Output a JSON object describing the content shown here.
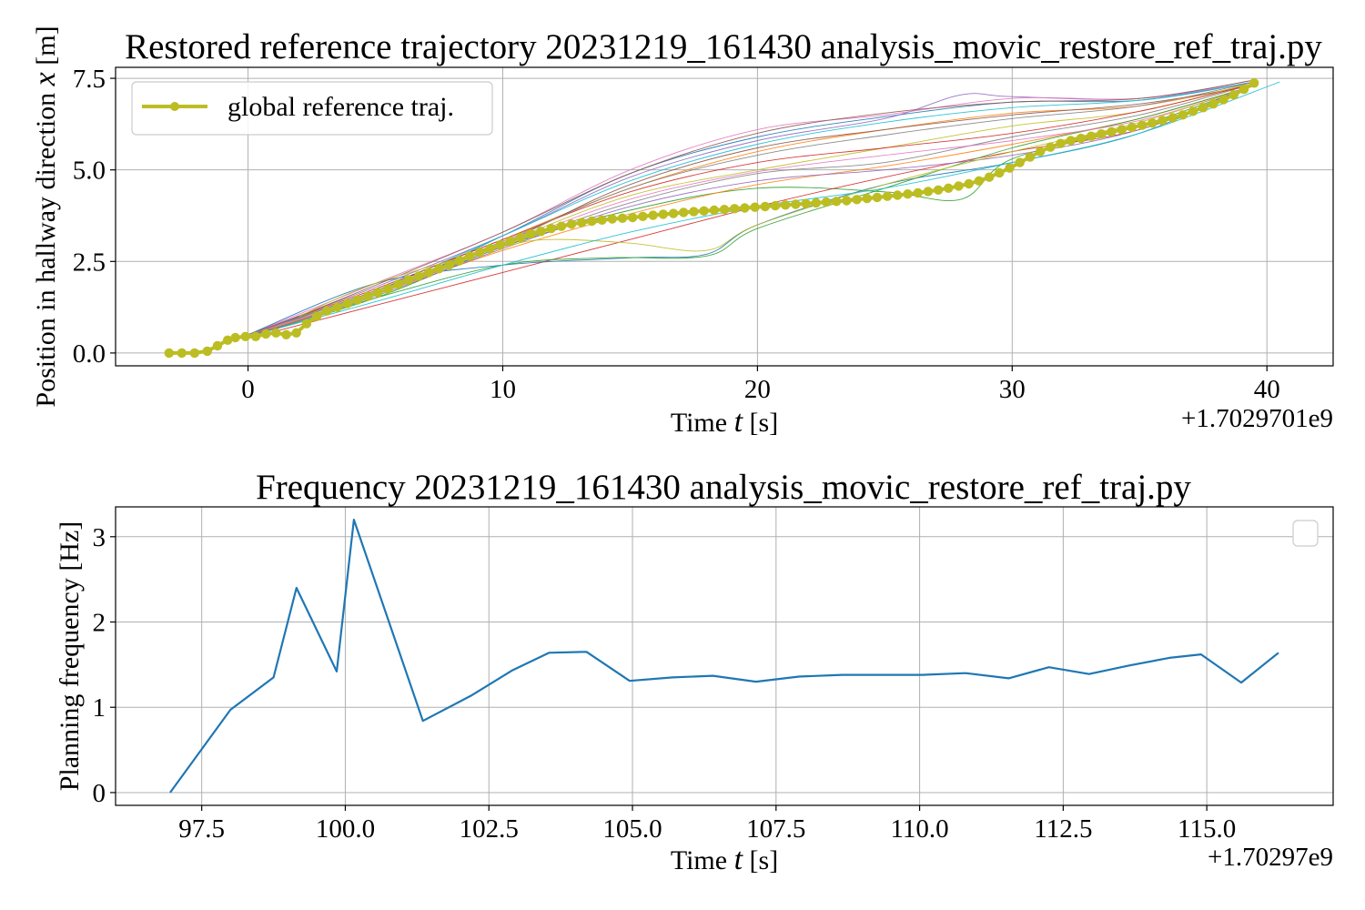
{
  "chart_data": [
    {
      "type": "line",
      "title": "Restored reference trajectory 20231219_161430 analysis_movic_restore_ref_traj.py",
      "xlabel_main": "Time ",
      "xlabel_var": "t",
      "xlabel_unit": " [s]",
      "ylabel_main": "Position in hallway direction ",
      "ylabel_var": "x",
      "ylabel_unit": " [m]",
      "offset_label": "+1.7029701e9",
      "xlim": [
        -5.2,
        42.6
      ],
      "ylim": [
        -0.35,
        7.8
      ],
      "xticks": [
        0,
        10,
        20,
        30,
        40
      ],
      "xtick_labels": [
        "0",
        "10",
        "20",
        "30",
        "40"
      ],
      "yticks": [
        0,
        2.5,
        5,
        7.5
      ],
      "ytick_labels": [
        "0.0",
        "2.5",
        "5.0",
        "7.5"
      ],
      "grid": true,
      "legend": {
        "placement": "top-left",
        "entries": [
          "global reference traj."
        ]
      },
      "colors": {
        "main": "#bcbd22",
        "palette": [
          "#1f77b4",
          "#ff7f0e",
          "#2ca02c",
          "#d62728",
          "#9467bd",
          "#8c564b",
          "#e377c2",
          "#7f7f7f",
          "#bcbd22",
          "#17becf"
        ]
      },
      "series": [
        {
          "name": "global reference traj.",
          "x": [
            -3.1,
            -2.6,
            -2.1,
            -1.6,
            -1.2,
            -0.8,
            -0.5,
            -0.1,
            0.3,
            0.7,
            1.1,
            1.5,
            1.9,
            2.3,
            2.7,
            3.1,
            3.5,
            3.9,
            4.3,
            4.7,
            5.1,
            5.5,
            5.9,
            6.3,
            6.7,
            7.1,
            7.5,
            7.9,
            8.3,
            8.7,
            9.1,
            9.5,
            9.9,
            10.3,
            10.7,
            11.1,
            11.5,
            11.9,
            12.3,
            12.7,
            13.1,
            13.5,
            13.9,
            14.3,
            14.7,
            15.1,
            15.5,
            15.9,
            16.3,
            16.7,
            17.1,
            17.5,
            17.9,
            18.3,
            18.7,
            19.1,
            19.5,
            19.9,
            20.3,
            20.7,
            21.1,
            21.5,
            21.9,
            22.3,
            22.7,
            23.1,
            23.5,
            23.9,
            24.3,
            24.7,
            25.1,
            25.5,
            25.9,
            26.3,
            26.7,
            27.1,
            27.5,
            27.9,
            28.3,
            28.7,
            29.1,
            29.5,
            29.9,
            30.3,
            30.7,
            31.1,
            31.5,
            31.9,
            32.3,
            32.7,
            33.1,
            33.5,
            33.9,
            34.3,
            34.7,
            35.1,
            35.5,
            35.9,
            36.3,
            36.7,
            37.1,
            37.5,
            37.9,
            38.3,
            38.7,
            39.1,
            39.5
          ],
          "y": [
            0.0,
            0.0,
            0.0,
            0.05,
            0.2,
            0.35,
            0.42,
            0.45,
            0.45,
            0.52,
            0.55,
            0.5,
            0.55,
            0.8,
            1.0,
            1.15,
            1.25,
            1.35,
            1.45,
            1.55,
            1.65,
            1.75,
            1.88,
            2.0,
            2.1,
            2.2,
            2.3,
            2.4,
            2.52,
            2.65,
            2.75,
            2.85,
            2.95,
            3.05,
            3.15,
            3.25,
            3.32,
            3.4,
            3.46,
            3.52,
            3.56,
            3.6,
            3.63,
            3.66,
            3.68,
            3.7,
            3.73,
            3.76,
            3.79,
            3.81,
            3.84,
            3.86,
            3.88,
            3.9,
            3.92,
            3.94,
            3.96,
            3.98,
            4.0,
            4.02,
            4.04,
            4.06,
            4.08,
            4.1,
            4.12,
            4.14,
            4.16,
            4.19,
            4.22,
            4.25,
            4.28,
            4.31,
            4.34,
            4.37,
            4.41,
            4.45,
            4.5,
            4.56,
            4.62,
            4.7,
            4.8,
            4.92,
            5.05,
            5.2,
            5.35,
            5.5,
            5.62,
            5.72,
            5.8,
            5.86,
            5.92,
            5.98,
            6.04,
            6.1,
            6.16,
            6.22,
            6.28,
            6.35,
            6.42,
            6.5,
            6.6,
            6.7,
            6.8,
            6.92,
            7.05,
            7.2,
            7.37
          ]
        }
      ],
      "thin_series": [
        {
          "x": [
            0,
            5,
            10,
            15,
            20,
            25,
            30,
            35,
            39.5
          ],
          "y": [
            0.45,
            1.6,
            3.2,
            4.9,
            5.9,
            6.45,
            6.85,
            6.9,
            7.4
          ]
        },
        {
          "x": [
            0,
            5,
            10,
            15,
            20,
            25,
            30,
            35,
            39.5
          ],
          "y": [
            0.5,
            1.75,
            3.1,
            4.5,
            5.5,
            6.1,
            6.55,
            6.75,
            7.35
          ]
        },
        {
          "x": [
            0,
            5,
            10,
            15,
            20,
            25,
            28,
            30,
            35,
            39.5
          ],
          "y": [
            0.45,
            1.5,
            2.9,
            3.9,
            4.5,
            4.4,
            4.2,
            5.3,
            6.2,
            7.3
          ]
        },
        {
          "x": [
            0,
            5,
            10,
            15,
            20,
            25,
            30,
            35,
            39.5
          ],
          "y": [
            0.4,
            1.3,
            2.2,
            3.1,
            4.0,
            4.8,
            5.5,
            6.1,
            7.3
          ]
        },
        {
          "x": [
            0,
            5,
            10,
            15,
            20,
            25,
            28,
            30,
            35,
            39.5
          ],
          "y": [
            0.5,
            1.8,
            3.2,
            4.8,
            5.8,
            6.4,
            7.05,
            7.0,
            6.95,
            7.45
          ]
        },
        {
          "x": [
            0,
            5,
            10,
            15,
            20,
            25,
            30,
            35,
            39.5
          ],
          "y": [
            0.45,
            1.7,
            3.0,
            4.6,
            5.6,
            6.1,
            6.5,
            6.8,
            7.3
          ]
        },
        {
          "x": [
            0,
            5,
            10,
            15,
            20,
            25,
            30,
            35,
            39.5
          ],
          "y": [
            0.5,
            1.9,
            3.3,
            5.0,
            6.1,
            6.5,
            6.95,
            6.95,
            7.4
          ]
        },
        {
          "x": [
            0,
            5,
            10,
            15,
            20,
            25,
            30,
            35,
            39.5
          ],
          "y": [
            0.45,
            1.6,
            2.9,
            4.1,
            4.9,
            5.2,
            5.9,
            6.5,
            7.35
          ]
        },
        {
          "x": [
            0,
            5,
            10,
            15,
            20,
            25,
            30,
            35,
            39.5
          ],
          "y": [
            0.45,
            1.65,
            3.0,
            4.3,
            5.0,
            5.6,
            6.2,
            6.6,
            7.4
          ]
        },
        {
          "x": [
            0,
            5,
            10,
            15,
            20,
            25,
            30,
            35,
            39.5
          ],
          "y": [
            0.5,
            1.7,
            3.2,
            4.7,
            5.7,
            6.3,
            6.7,
            6.9,
            7.4
          ]
        },
        {
          "x": [
            0,
            5,
            10,
            15,
            18,
            20,
            25,
            30,
            35,
            39.5
          ],
          "y": [
            0.5,
            1.9,
            2.4,
            2.6,
            2.7,
            3.5,
            4.6,
            5.2,
            6.0,
            7.35
          ]
        },
        {
          "x": [
            0,
            5,
            10,
            15,
            20,
            25,
            30,
            35,
            39.5
          ],
          "y": [
            0.45,
            1.6,
            2.8,
            3.8,
            4.6,
            5.1,
            5.7,
            6.4,
            7.3
          ]
        },
        {
          "x": [
            0,
            5,
            10,
            14,
            18,
            20,
            25,
            30,
            35,
            39.5
          ],
          "y": [
            0.45,
            1.5,
            2.4,
            2.6,
            2.65,
            3.4,
            4.5,
            5.6,
            6.4,
            7.3
          ]
        },
        {
          "x": [
            0,
            5,
            10,
            15,
            20,
            25,
            30,
            35,
            39.5
          ],
          "y": [
            0.5,
            1.75,
            3.1,
            4.4,
            5.2,
            5.6,
            6.0,
            6.6,
            7.35
          ]
        },
        {
          "x": [
            0,
            5,
            10,
            15,
            20,
            25,
            30,
            35,
            39.5
          ],
          "y": [
            0.45,
            1.55,
            2.85,
            4.0,
            4.7,
            5.0,
            5.4,
            6.1,
            7.35
          ]
        },
        {
          "x": [
            0,
            5,
            10,
            15,
            20,
            25,
            30,
            35,
            39.5
          ],
          "y": [
            0.45,
            1.85,
            3.3,
            4.9,
            6.0,
            6.55,
            6.85,
            6.95,
            7.45
          ]
        },
        {
          "x": [
            0,
            5,
            10,
            15,
            20,
            25,
            30,
            35,
            39.5
          ],
          "y": [
            0.5,
            1.6,
            2.95,
            4.2,
            4.95,
            5.4,
            5.8,
            6.35,
            7.3
          ]
        },
        {
          "x": [
            0,
            5,
            10,
            15,
            20,
            25,
            30,
            35,
            39.5
          ],
          "y": [
            0.5,
            1.7,
            3.05,
            4.5,
            5.4,
            5.95,
            6.4,
            6.75,
            7.4
          ]
        },
        {
          "x": [
            2,
            5,
            10,
            12,
            15,
            18,
            20,
            25,
            30,
            35,
            39.5
          ],
          "y": [
            1.0,
            1.9,
            2.9,
            3.1,
            3.0,
            2.8,
            3.5,
            4.6,
            5.5,
            6.3,
            7.3
          ]
        },
        {
          "x": [
            0,
            5,
            10,
            15,
            20,
            25,
            30,
            35,
            40.5
          ],
          "y": [
            0.45,
            1.4,
            2.4,
            3.3,
            4.0,
            4.5,
            5.2,
            6.0,
            7.4
          ]
        }
      ]
    },
    {
      "type": "line",
      "title": "Frequency 20231219_161430 analysis_movic_restore_ref_traj.py",
      "xlabel_main": "Time ",
      "xlabel_var": "t",
      "xlabel_unit": " [s]",
      "ylabel": "Planning frequency [Hz]",
      "offset_label": "+1.70297e9",
      "xlim": [
        96.0,
        117.2
      ],
      "ylim": [
        -0.15,
        3.35
      ],
      "xticks": [
        97.5,
        100.0,
        102.5,
        105.0,
        107.5,
        110.0,
        112.5,
        115.0
      ],
      "xtick_labels": [
        "97.5",
        "100.0",
        "102.5",
        "105.0",
        "107.5",
        "110.0",
        "112.5",
        "115.0"
      ],
      "yticks": [
        0,
        1,
        2,
        3
      ],
      "ytick_labels": [
        "0",
        "1",
        "2",
        "3"
      ],
      "grid": true,
      "legend": {
        "placement": "top-right",
        "entries": []
      },
      "colors": {
        "line": "#1f77b4"
      },
      "series": [
        {
          "x": [
            96.95,
            98.0,
            98.75,
            99.15,
            99.85,
            100.15,
            101.35,
            102.2,
            102.9,
            103.55,
            104.2,
            104.95,
            105.7,
            106.4,
            107.15,
            107.9,
            108.65,
            109.35,
            110.05,
            110.8,
            111.55,
            112.25,
            112.95,
            113.65,
            114.35,
            114.9,
            115.6,
            116.25
          ],
          "y": [
            0.0,
            0.97,
            1.35,
            2.4,
            1.42,
            3.2,
            0.84,
            1.14,
            1.43,
            1.64,
            1.65,
            1.31,
            1.35,
            1.37,
            1.3,
            1.36,
            1.38,
            1.38,
            1.38,
            1.4,
            1.34,
            1.47,
            1.39,
            1.49,
            1.58,
            1.62,
            1.29,
            1.64
          ]
        }
      ]
    }
  ]
}
